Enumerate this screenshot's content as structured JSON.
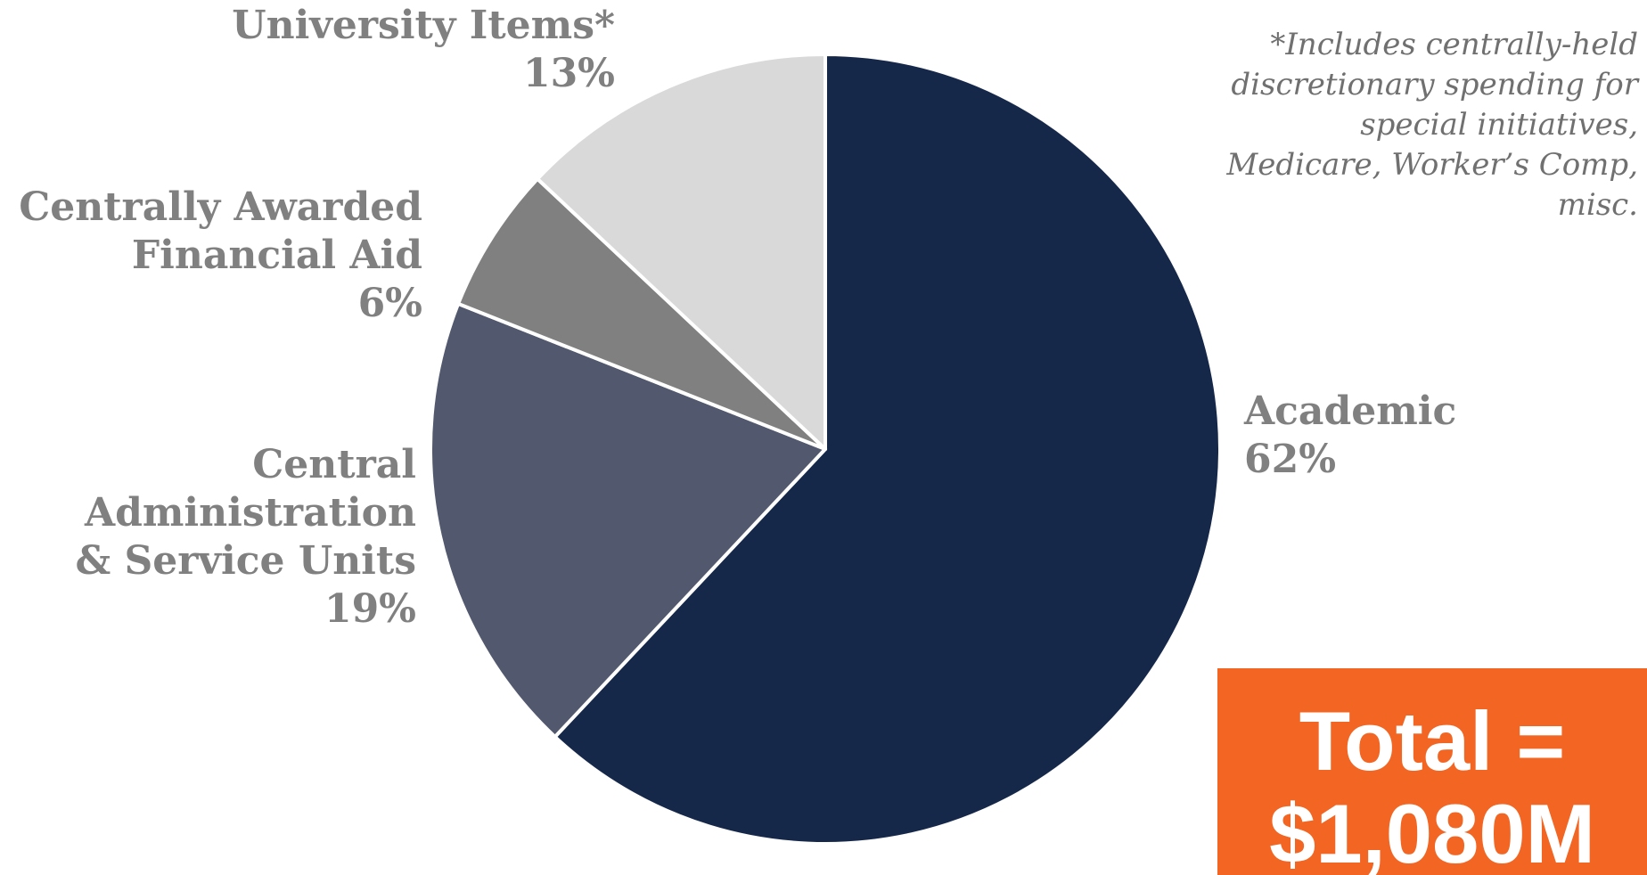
{
  "chart_data": {
    "type": "pie",
    "slices": [
      {
        "name": "Academic",
        "value": 62,
        "label": "62%",
        "color": "#16284a"
      },
      {
        "name": "Central Administration & Service Units",
        "value": 19,
        "label": "19%",
        "color": "#52586d"
      },
      {
        "name": "Centrally Awarded Financial Aid",
        "value": 6,
        "label": "6%",
        "color": "#808080"
      },
      {
        "name": "University Items*",
        "value": 13,
        "label": "13%",
        "color": "#d9d9d9"
      }
    ],
    "start": "12 o'clock",
    "direction": "clockwise"
  },
  "labels": {
    "university": {
      "line1": "University Items*",
      "line2": "13%"
    },
    "aid": {
      "line1": "Centrally Awarded",
      "line2": "Financial Aid",
      "line3": "6%"
    },
    "admin": {
      "line1": "Central",
      "line2": "Administration",
      "line3": "& Service Units",
      "line4": "19%"
    },
    "academic": {
      "line1": "Academic",
      "line2": "62%"
    }
  },
  "footnote": "*Includes centrally-held\ndiscretionary spending for\nspecial initiatives,\nMedicare, Worker’s Comp,\nmisc.",
  "total": {
    "line1": "Total =",
    "line2": "$1,080M"
  },
  "colors": {
    "label_text": "#808080",
    "total_bg": "#f26522",
    "total_text": "#ffffff",
    "slice_border": "#ffffff"
  }
}
